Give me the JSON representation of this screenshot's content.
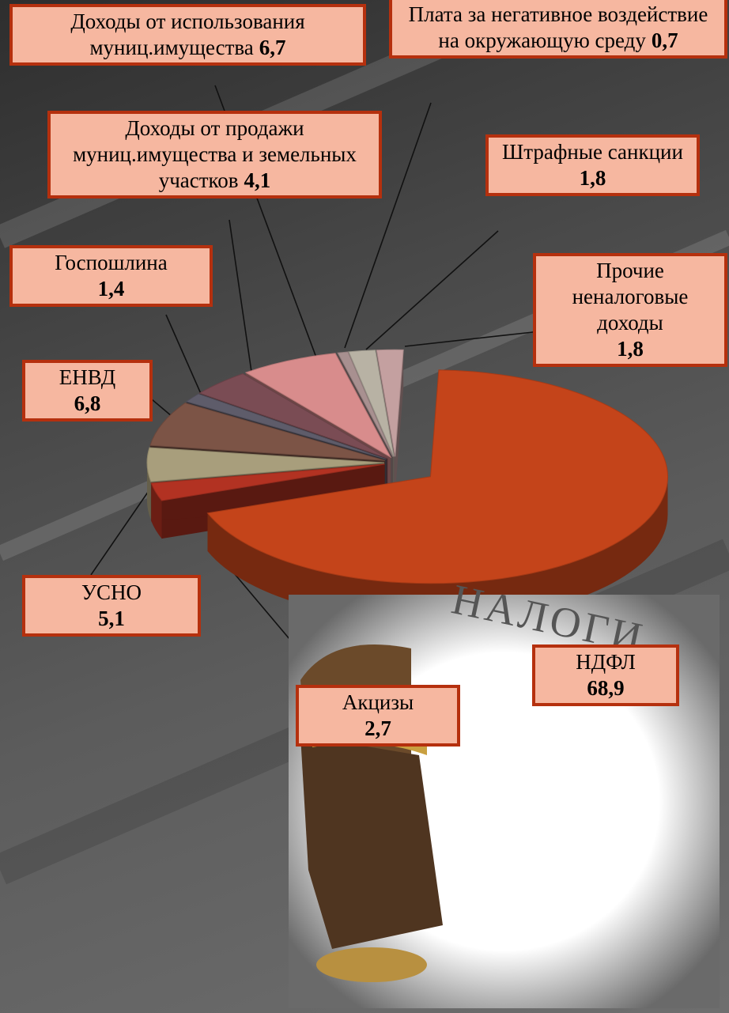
{
  "chart_data": {
    "type": "pie3d",
    "categories": [
      "НДФЛ",
      "Акцизы",
      "УСНО",
      "ЕНВД",
      "Госпошлина",
      "Доходы от продажи муниц.имущества и земельных участков",
      "Доходы от использования муниц.имущества",
      "Плата за негативное воздействие на окружающую среду",
      "Штрафные санкции",
      "Прочие неналоговые доходы"
    ],
    "values": [
      68.9,
      2.7,
      5.1,
      6.8,
      1.4,
      4.1,
      6.7,
      0.7,
      1.8,
      1.8
    ],
    "value_labels": [
      "68,9",
      "2,7",
      "5,1",
      "6,8",
      "1,4",
      "4,1",
      "6,7",
      "0,7",
      "1,8",
      "1,8"
    ],
    "colors": [
      "#c4441a",
      "#b23222",
      "#a89e7c",
      "#7c5446",
      "#5e5c6a",
      "#7a4c54",
      "#d88c8c",
      "#a89090",
      "#b8b2a4",
      "#c4a0a0"
    ]
  },
  "image_caption": "НАЛОГИ"
}
